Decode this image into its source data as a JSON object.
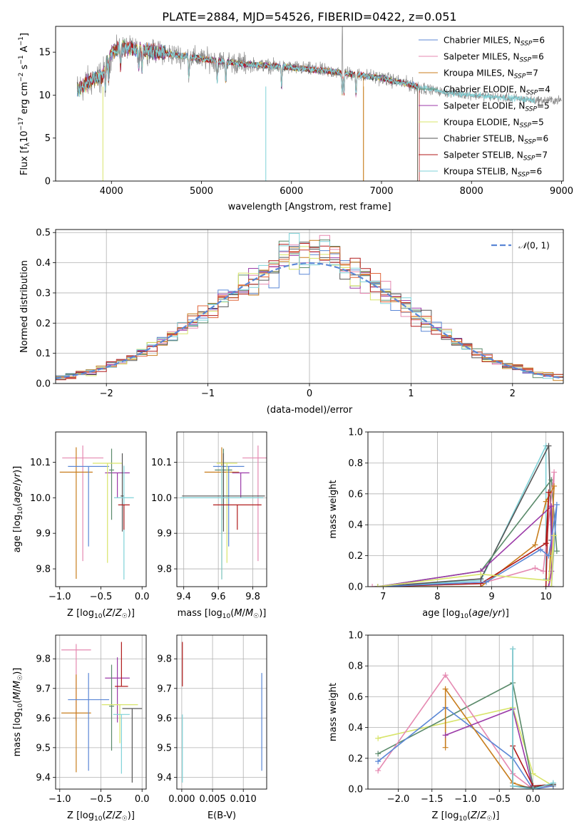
{
  "figure": {
    "title": "PLATE=2884, MJD=54526, FIBERID=0422, z=0.051"
  },
  "colors": {
    "chabrier_miles": "#5b87d6",
    "salpeter_miles": "#e589b1",
    "kroupa_miles": "#c87e1e",
    "chabrier_elodie": "#5a8a6a",
    "salpeter_elodie": "#9b3aa8",
    "kroupa_elodie": "#d8e46a",
    "chabrier_stelib": "#555555",
    "salpeter_stelib": "#b01a1a",
    "kroupa_stelib": "#7fd2d8",
    "data": "#888888",
    "stelib_model": "#e0663a",
    "gauss": "#5b87d6"
  },
  "legend": [
    {
      "key": "chabrier_miles",
      "label": "Chabrier MILES, N",
      "sub": "SSP",
      "val": "=6"
    },
    {
      "key": "salpeter_miles",
      "label": "Salpeter MILES, N",
      "sub": "SSP",
      "val": "=6"
    },
    {
      "key": "kroupa_miles",
      "label": "Kroupa MILES, N",
      "sub": "SSP",
      "val": "=7"
    },
    {
      "key": "chabrier_elodie",
      "label": "Chabrier ELODIE, N",
      "sub": "SSP",
      "val": "=4"
    },
    {
      "key": "salpeter_elodie",
      "label": "Salpeter ELODIE, N",
      "sub": "SSP",
      "val": "=5"
    },
    {
      "key": "kroupa_elodie",
      "label": "Kroupa ELODIE, N",
      "sub": "SSP",
      "val": "=5"
    },
    {
      "key": "chabrier_stelib",
      "label": "Chabrier STELIB, N",
      "sub": "SSP",
      "val": "=6"
    },
    {
      "key": "salpeter_stelib",
      "label": "Salpeter STELIB, N",
      "sub": "SSP",
      "val": "=7"
    },
    {
      "key": "kroupa_stelib",
      "label": "Kroupa STELIB, N",
      "sub": "SSP",
      "val": "=6"
    }
  ],
  "chart_data": [
    {
      "id": "spectrum",
      "type": "line",
      "xlabel": "wavelength [Angstrom, rest frame]",
      "ylabel": "Flux [f_λ 10^-17 erg cm^-2 s^-1 A^-1]",
      "xlim": [
        3380,
        9020
      ],
      "ylim": [
        0,
        18
      ],
      "xticks": [
        4000,
        5000,
        6000,
        7000,
        8000,
        9000
      ],
      "yticks": [
        0,
        5,
        10,
        15
      ],
      "continuum": [
        [
          3620,
          10.6
        ],
        [
          3700,
          11.2
        ],
        [
          3800,
          11.8
        ],
        [
          3900,
          12.2
        ],
        [
          4000,
          15.0
        ],
        [
          4100,
          15.6
        ],
        [
          4300,
          15.3
        ],
        [
          4600,
          14.9
        ],
        [
          5000,
          14.2
        ],
        [
          5500,
          13.6
        ],
        [
          6000,
          13.2
        ],
        [
          6500,
          12.7
        ],
        [
          7000,
          12.0
        ],
        [
          7400,
          11.0
        ],
        [
          7700,
          10.3
        ],
        [
          8000,
          10.0
        ],
        [
          8400,
          9.7
        ],
        [
          8700,
          9.4
        ]
      ],
      "data_end": 9000,
      "model_end": 8700
    },
    {
      "id": "residuals",
      "type": "histogram",
      "xlabel": "(data-model)/error",
      "ylabel": "Normed distribution",
      "xlim": [
        -2.5,
        2.5
      ],
      "ylim": [
        0,
        0.51
      ],
      "xticks": [
        -2,
        -1,
        0,
        1,
        2
      ],
      "yticks": [
        0,
        0.1,
        0.2,
        0.3,
        0.4,
        0.5
      ],
      "bin_width": 0.1,
      "gaussian": {
        "label": "N(0,1)",
        "mu": 0,
        "sigma": 1
      }
    },
    {
      "id": "age_vs_z",
      "type": "scatter",
      "xlabel": "Z [log10(Z/Z☉)]",
      "ylabel": "age [log10(age/yr)]",
      "xlim": [
        -1.05,
        0.05
      ],
      "ylim": [
        9.75,
        10.185
      ],
      "xticks": [
        -1.0,
        -0.5,
        0.0
      ],
      "yticks": [
        9.8,
        9.9,
        10.0,
        10.1
      ],
      "points": [
        {
          "key": "salpeter_miles",
          "x": -0.72,
          "xerr": 0.25,
          "y": 10.112,
          "yerr": [
            0.29,
            0.035
          ]
        },
        {
          "key": "kroupa_miles",
          "x": -0.8,
          "xerr": 0.2,
          "y": 10.072,
          "yerr": [
            0.3,
            0.07
          ]
        },
        {
          "key": "chabrier_miles",
          "x": -0.65,
          "xerr": 0.25,
          "y": 10.088,
          "yerr": [
            0.225,
            0.0
          ]
        },
        {
          "key": "salpeter_elodie",
          "x": -0.3,
          "xerr": 0.15,
          "y": 10.07,
          "yerr": [
            0.07,
            0.0
          ]
        },
        {
          "key": "chabrier_elodie",
          "x": -0.37,
          "xerr": 0.03,
          "y": 10.078,
          "yerr": [
            0.14,
            0.06
          ]
        },
        {
          "key": "kroupa_elodie",
          "x": -0.42,
          "xerr": 0.18,
          "y": 10.097,
          "yerr": [
            0.28,
            0.0
          ]
        },
        {
          "key": "chabrier_stelib",
          "x": -0.24,
          "xerr": 0.02,
          "y": 10.005,
          "yerr": [
            0.1,
            0.12
          ]
        },
        {
          "key": "kroupa_stelib",
          "x": -0.22,
          "xerr": 0.12,
          "y": 10.0,
          "yerr": [
            0.23,
            0.09
          ]
        },
        {
          "key": "salpeter_stelib",
          "x": -0.22,
          "xerr": 0.07,
          "y": 9.98,
          "yerr": [
            0.07,
            0.0
          ]
        }
      ]
    },
    {
      "id": "age_vs_mass",
      "type": "scatter",
      "xlabel": "mass [log10(M/M☉)]",
      "ylabel": "",
      "xlim": [
        9.36,
        9.88
      ],
      "ylim": [
        9.75,
        10.185
      ],
      "xticks": [
        9.4,
        9.6,
        9.8
      ],
      "yticks": [
        9.8,
        9.9,
        10.0,
        10.1
      ],
      "points": [
        {
          "key": "salpeter_miles",
          "x": 9.83,
          "xerr": 0.09,
          "y": 10.112,
          "yerr": [
            0.29,
            0.035
          ]
        },
        {
          "key": "kroupa_miles",
          "x": 9.62,
          "xerr": 0.1,
          "y": 10.072,
          "yerr": [
            0.3,
            0.07
          ]
        },
        {
          "key": "chabrier_miles",
          "x": 9.66,
          "xerr": 0.09,
          "y": 10.088,
          "yerr": [
            0.225,
            0.0
          ]
        },
        {
          "key": "salpeter_elodie",
          "x": 9.73,
          "xerr": 0.05,
          "y": 10.07,
          "yerr": [
            0.07,
            0.0
          ]
        },
        {
          "key": "chabrier_elodie",
          "x": 9.63,
          "xerr": 0.05,
          "y": 10.078,
          "yerr": [
            0.14,
            0.06
          ]
        },
        {
          "key": "kroupa_elodie",
          "x": 9.65,
          "xerr": 0.06,
          "y": 10.097,
          "yerr": [
            0.28,
            0.0
          ]
        },
        {
          "key": "chabrier_stelib",
          "x": 9.63,
          "xerr": 0.24,
          "y": 10.005,
          "yerr": [
            0.1,
            0.12
          ]
        },
        {
          "key": "kroupa_stelib",
          "x": 9.62,
          "xerr": 0.24,
          "y": 10.0,
          "yerr": [
            0.23,
            0.09
          ]
        },
        {
          "key": "salpeter_stelib",
          "x": 9.71,
          "xerr": 0.14,
          "y": 9.98,
          "yerr": [
            0.07,
            0.0
          ]
        }
      ]
    },
    {
      "id": "weight_vs_age",
      "type": "line",
      "xlabel": "age [log10(age/yr)]",
      "ylabel": "mass weight",
      "xlim": [
        6.72,
        10.32
      ],
      "ylim": [
        0,
        1.0
      ],
      "xticks": [
        7,
        8,
        9,
        10
      ],
      "yticks": [
        0,
        0.2,
        0.4,
        0.6,
        0.8,
        1.0
      ],
      "series": [
        {
          "key": "kroupa_stelib",
          "points": [
            [
              6.9,
              0.0
            ],
            [
              8.8,
              0.04
            ],
            [
              10.0,
              0.91
            ],
            [
              10.0,
              0.05
            ]
          ]
        },
        {
          "key": "chabrier_stelib",
          "points": [
            [
              6.9,
              0.0
            ],
            [
              8.8,
              0.05
            ],
            [
              10.05,
              0.91
            ],
            [
              10.1,
              0.3
            ]
          ]
        },
        {
          "key": "chabrier_elodie",
          "points": [
            [
              6.9,
              0.0
            ],
            [
              8.8,
              0.1
            ],
            [
              10.1,
              0.69
            ],
            [
              10.2,
              0.23
            ]
          ]
        },
        {
          "key": "salpeter_miles",
          "points": [
            [
              6.8,
              0.0
            ],
            [
              8.8,
              0.02
            ],
            [
              9.8,
              0.12
            ],
            [
              9.95,
              0.1
            ],
            [
              10.15,
              0.74
            ],
            [
              10.1,
              0.0
            ]
          ]
        },
        {
          "key": "kroupa_miles",
          "points": [
            [
              6.9,
              0.0
            ],
            [
              8.8,
              0.0
            ],
            [
              9.8,
              0.27
            ],
            [
              10.0,
              0.55
            ],
            [
              10.15,
              0.65
            ],
            [
              10.05,
              0.0
            ]
          ]
        },
        {
          "key": "salpeter_elodie",
          "points": [
            [
              6.9,
              0.0
            ],
            [
              8.8,
              0.1
            ],
            [
              10.1,
              0.52
            ],
            [
              10.1,
              0.1
            ],
            [
              10.05,
              0.0
            ]
          ]
        },
        {
          "key": "salpeter_stelib",
          "points": [
            [
              6.9,
              0.0
            ],
            [
              8.8,
              0.02
            ],
            [
              10.0,
              0.28
            ],
            [
              10.05,
              0.61
            ],
            [
              10.0,
              0.0
            ]
          ]
        },
        {
          "key": "chabrier_miles",
          "points": [
            [
              6.9,
              0.0
            ],
            [
              8.9,
              0.03
            ],
            [
              9.9,
              0.24
            ],
            [
              10.05,
              0.2
            ],
            [
              10.2,
              0.53
            ],
            [
              10.1,
              0.0
            ]
          ]
        },
        {
          "key": "kroupa_elodie",
          "points": [
            [
              6.9,
              0.0
            ],
            [
              8.8,
              0.08
            ],
            [
              10.05,
              0.04
            ],
            [
              10.15,
              0.33
            ],
            [
              10.1,
              0.0
            ]
          ]
        }
      ]
    },
    {
      "id": "mass_vs_z",
      "type": "scatter",
      "xlabel": "Z [log10(Z/Z☉)]",
      "ylabel": "mass [log10(M/M☉)]",
      "xlim": [
        -1.05,
        0.05
      ],
      "ylim": [
        9.36,
        9.88
      ],
      "xticks": [
        -1.0,
        -0.5,
        0.0
      ],
      "yticks": [
        9.4,
        9.5,
        9.6,
        9.7,
        9.8
      ],
      "points": [
        {
          "key": "salpeter_miles",
          "x": -0.8,
          "xerr": 0.18,
          "y": 9.83,
          "yerr": [
            0.24,
            0.02
          ]
        },
        {
          "key": "kroupa_miles",
          "x": -0.8,
          "xerr": 0.18,
          "y": 9.617,
          "yerr": [
            0.2,
            0.13
          ]
        },
        {
          "key": "chabrier_miles",
          "x": -0.65,
          "xerr": 0.25,
          "y": 9.662,
          "yerr": [
            0.24,
            0.09
          ]
        },
        {
          "key": "salpeter_elodie",
          "x": -0.3,
          "xerr": 0.15,
          "y": 9.735,
          "yerr": [
            0.15,
            0.07
          ]
        },
        {
          "key": "chabrier_elodie",
          "x": -0.37,
          "xerr": 0.03,
          "y": 9.64,
          "yerr": [
            0.15,
            0.14
          ]
        },
        {
          "key": "kroupa_elodie",
          "x": -0.27,
          "xerr": 0.22,
          "y": 9.645,
          "yerr": [
            0.13,
            0.0
          ]
        },
        {
          "key": "chabrier_stelib",
          "x": -0.12,
          "xerr": 0.12,
          "y": 9.632,
          "yerr": [
            0.25,
            0.0
          ]
        },
        {
          "key": "kroupa_stelib",
          "x": -0.25,
          "xerr": 0.1,
          "y": 9.612,
          "yerr": [
            0.2,
            0.0
          ]
        },
        {
          "key": "salpeter_stelib",
          "x": -0.25,
          "xerr": 0.08,
          "y": 9.707,
          "yerr": [
            0.0,
            0.15
          ]
        }
      ]
    },
    {
      "id": "mass_vs_ebv",
      "type": "scatter",
      "xlabel": "E(B-V)",
      "ylabel": "",
      "xlim": [
        -0.0008,
        0.0138
      ],
      "ylim": [
        9.36,
        9.88
      ],
      "xticks": [
        0.0,
        0.005,
        0.01
      ],
      "xticklabels": [
        "0.000",
        "0.005",
        "0.010"
      ],
      "yticks": [
        9.4,
        9.5,
        9.6,
        9.7,
        9.8
      ],
      "points": [
        {
          "key": "chabrier_miles",
          "x": 0.013,
          "xerr": 0,
          "y": 9.662,
          "yerr": [
            0.24,
            0.09
          ]
        },
        {
          "key": "salpeter_stelib",
          "x": 0.0001,
          "xerr": 0,
          "y": 9.707,
          "yerr": [
            0.0,
            0.15
          ]
        },
        {
          "key": "kroupa_stelib",
          "x": 0.0001,
          "xerr": 0,
          "y": 9.612,
          "yerr": [
            0.23,
            0.0
          ]
        }
      ]
    },
    {
      "id": "weight_vs_z",
      "type": "line",
      "xlabel": "Z [log10(Z/Z☉)]",
      "ylabel": "mass weight",
      "xlim": [
        -2.45,
        0.45
      ],
      "ylim": [
        0,
        1.0
      ],
      "xticks": [
        -2.0,
        -1.5,
        -1.0,
        -0.5,
        0.0
      ],
      "yticks": [
        0,
        0.2,
        0.4,
        0.6,
        0.8,
        1.0
      ],
      "series": [
        {
          "key": "kroupa_elodie",
          "points": [
            [
              -2.3,
              0.33
            ],
            [
              -0.3,
              0.53
            ],
            [
              0.0,
              0.1
            ],
            [
              0.3,
              0.02
            ]
          ]
        },
        {
          "key": "chabrier_elodie",
          "points": [
            [
              -2.3,
              0.23
            ],
            [
              -0.3,
              0.69
            ],
            [
              0.0,
              0.02
            ],
            [
              0.3,
              0.03
            ]
          ]
        },
        {
          "key": "salpeter_miles",
          "points": [
            [
              -2.3,
              0.12
            ],
            [
              -1.3,
              0.74
            ],
            [
              -0.3,
              0.1
            ],
            [
              0.0,
              0.0
            ],
            [
              0.3,
              0.03
            ]
          ]
        },
        {
          "key": "chabrier_miles",
          "points": [
            [
              -2.3,
              0.18
            ],
            [
              -1.3,
              0.53
            ],
            [
              -0.3,
              0.2
            ],
            [
              0.0,
              0.0
            ],
            [
              0.3,
              0.02
            ]
          ]
        },
        {
          "key": "kroupa_miles",
          "points": [
            [
              -1.3,
              0.27
            ],
            [
              -1.3,
              0.65
            ],
            [
              -0.3,
              0.04
            ],
            [
              0.0,
              0.0
            ]
          ]
        },
        {
          "key": "salpeter_elodie",
          "points": [
            [
              -1.3,
              0.35
            ],
            [
              -0.3,
              0.52
            ],
            [
              0.0,
              0.0
            ]
          ]
        },
        {
          "key": "salpeter_stelib",
          "points": [
            [
              -0.3,
              0.0
            ],
            [
              -0.3,
              0.28
            ],
            [
              0.0,
              0.02
            ],
            [
              0.3,
              0.03
            ]
          ]
        },
        {
          "key": "chabrier_stelib",
          "points": [
            [
              -0.3,
              0.91
            ],
            [
              -0.3,
              0.02
            ],
            [
              0.0,
              0.01
            ],
            [
              0.3,
              0.03
            ]
          ]
        },
        {
          "key": "kroupa_stelib",
          "points": [
            [
              -0.3,
              0.91
            ],
            [
              -0.3,
              0.02
            ],
            [
              0.0,
              0.0
            ],
            [
              0.3,
              0.04
            ]
          ]
        }
      ]
    }
  ]
}
